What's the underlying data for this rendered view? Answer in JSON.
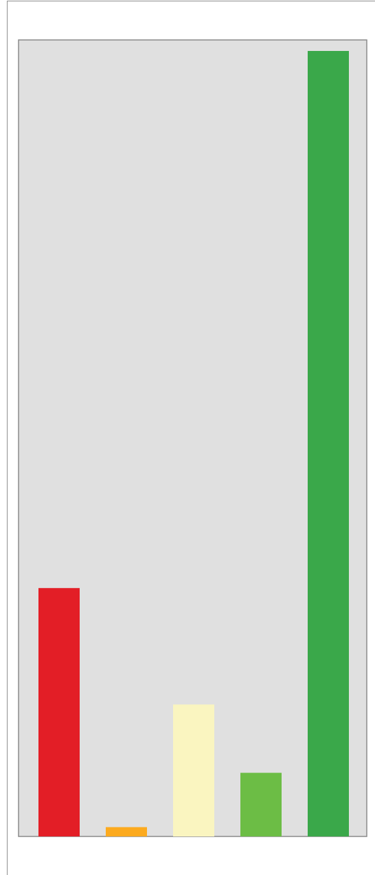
{
  "chart_data": {
    "type": "bar",
    "categories": [
      "",
      "",
      "",
      "",
      ""
    ],
    "values": [
      320,
      12,
      170,
      82,
      1012
    ],
    "colors": [
      "#e31e26",
      "#fcaa1f",
      "#faf5c0",
      "#6cbd45",
      "#3aa84a"
    ],
    "ylim": [
      0,
      1020
    ],
    "plot_background": "#e0e0e0",
    "grid": false,
    "legend": "none",
    "title": "",
    "xlabel": "",
    "ylabel": ""
  }
}
